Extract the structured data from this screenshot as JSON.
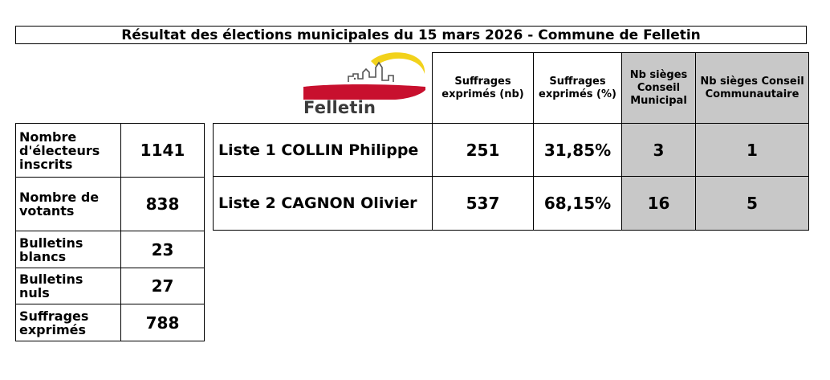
{
  "title": "Résultat des élections municipales du 15 mars 2026 - Commune de Felletin",
  "logo": {
    "text": "Felletin",
    "colors": {
      "arc": "#f2d21b",
      "red": "#c8102e",
      "outline": "#555555"
    }
  },
  "stats": [
    {
      "label": "Nombre d'électeurs inscrits",
      "value": "1141"
    },
    {
      "label": "Nombre de votants",
      "value": "838"
    },
    {
      "label": "Bulletins blancs",
      "value": "23"
    },
    {
      "label": "Bulletins nuls",
      "value": "27"
    },
    {
      "label": "Suffrages exprimés",
      "value": "788"
    }
  ],
  "results": {
    "headers": {
      "votes_nb": "Suffrages exprimés (nb)",
      "votes_pct": "Suffrages exprimés (%)",
      "seats_municipal": "Nb sièges Conseil Municipal",
      "seats_community": "Nb sièges Conseil Communautaire"
    },
    "rows": [
      {
        "list": "Liste 1 COLLIN Philippe",
        "votes_nb": "251",
        "votes_pct": "31,85%",
        "seats_municipal": "3",
        "seats_community": "1"
      },
      {
        "list": "Liste 2 CAGNON Olivier",
        "votes_nb": "537",
        "votes_pct": "68,15%",
        "seats_municipal": "16",
        "seats_community": "5"
      }
    ],
    "grey_color": "#c8c8c8"
  }
}
